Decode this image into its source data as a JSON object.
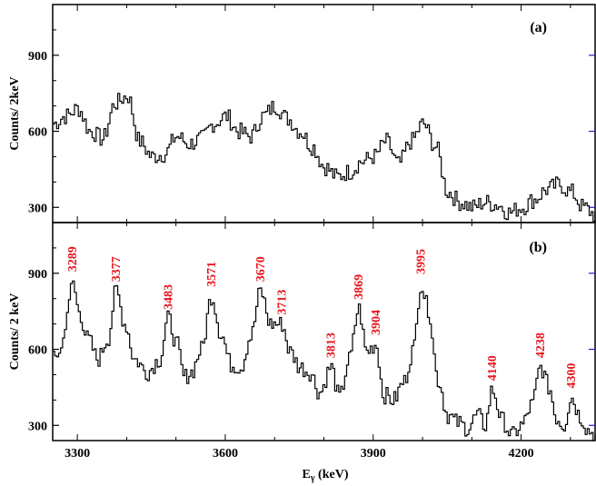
{
  "chart_data": [
    {
      "panel": "a",
      "type": "line",
      "tag": "(a)",
      "ylabel": "Counts/ 2keV",
      "xlim": [
        3250,
        4350
      ],
      "ylim": [
        240,
        1100
      ],
      "yticks": [
        300,
        600,
        900
      ],
      "grid": false,
      "series": [
        {
          "x": [
            3250,
            3275,
            3300,
            3325,
            3350,
            3375,
            3400,
            3425,
            3450,
            3475,
            3500,
            3525,
            3550,
            3575,
            3600,
            3625,
            3650,
            3675,
            3700,
            3725,
            3750,
            3775,
            3800,
            3825,
            3850,
            3875,
            3900,
            3925,
            3950,
            3975,
            4000,
            4025,
            4050,
            4075,
            4100,
            4125,
            4150,
            4175,
            4200,
            4225,
            4250,
            4275,
            4300,
            4325,
            4350
          ],
          "values": [
            630,
            660,
            690,
            600,
            570,
            710,
            740,
            560,
            500,
            510,
            580,
            550,
            570,
            630,
            660,
            600,
            580,
            660,
            700,
            650,
            600,
            540,
            460,
            420,
            440,
            480,
            500,
            560,
            470,
            560,
            630,
            540,
            360,
            320,
            300,
            320,
            310,
            280,
            300,
            330,
            370,
            390,
            360,
            300,
            270
          ]
        }
      ]
    },
    {
      "panel": "b",
      "type": "line",
      "tag": "(b)",
      "xlabel": "Eγ (keV)",
      "ylabel": "Counts/ 2 keV",
      "xlim": [
        3250,
        4350
      ],
      "ylim": [
        240,
        1100
      ],
      "yticks": [
        300,
        600,
        900
      ],
      "xticks": [
        3300,
        3600,
        3900,
        4200
      ],
      "grid": false,
      "peak_labels": [
        "3289",
        "3377",
        "3483",
        "3571",
        "3670",
        "3713",
        "3813",
        "3869",
        "3904",
        "3995",
        "4140",
        "4238",
        "4300"
      ],
      "series": [
        {
          "x": [
            3250,
            3265,
            3280,
            3289,
            3300,
            3320,
            3340,
            3360,
            3377,
            3395,
            3415,
            3440,
            3465,
            3483,
            3500,
            3515,
            3530,
            3550,
            3571,
            3590,
            3610,
            3630,
            3650,
            3670,
            3690,
            3713,
            3730,
            3750,
            3770,
            3790,
            3813,
            3830,
            3850,
            3869,
            3885,
            3904,
            3920,
            3940,
            3960,
            3980,
            3995,
            4010,
            4030,
            4050,
            4070,
            4090,
            4110,
            4125,
            4140,
            4160,
            4180,
            4200,
            4220,
            4238,
            4255,
            4270,
            4285,
            4300,
            4320,
            4335,
            4350
          ],
          "values": [
            560,
            600,
            760,
            870,
            760,
            640,
            560,
            640,
            830,
            700,
            560,
            510,
            560,
            720,
            620,
            490,
            510,
            600,
            810,
            660,
            540,
            530,
            650,
            830,
            700,
            700,
            590,
            530,
            510,
            430,
            530,
            410,
            560,
            760,
            590,
            620,
            420,
            400,
            470,
            600,
            860,
            760,
            480,
            340,
            310,
            290,
            340,
            300,
            440,
            320,
            260,
            300,
            380,
            530,
            450,
            330,
            300,
            410,
            330,
            280,
            260
          ]
        }
      ]
    }
  ],
  "colors": {
    "trace": "#000000",
    "peak_label": "#e8141c",
    "right_tick": "#2020c0"
  }
}
